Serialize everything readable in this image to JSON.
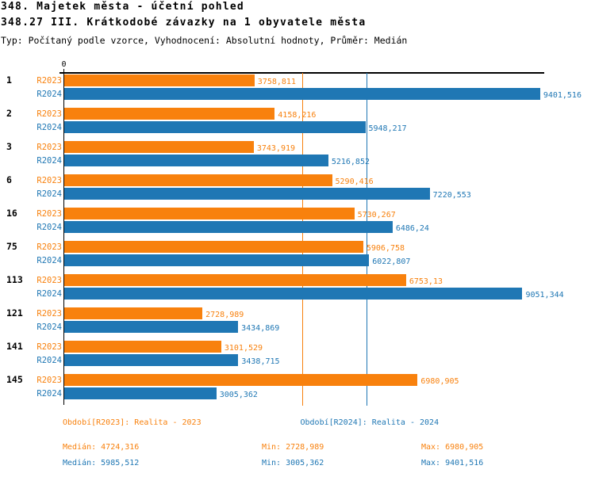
{
  "title": "348. Majetek města - účetní pohled",
  "subtitle": "348.27 III. Krátkodobé závazky na 1 obyvatele města",
  "meta": "Typ: Počítaný podle vzorce, Vyhodnocení: Absolutní hodnoty, Průměr: Medián",
  "colors": {
    "r2023": "#f8810d",
    "r2024": "#1f77b4",
    "axis": "#000000",
    "background": "#ffffff"
  },
  "chart_data": {
    "type": "bar",
    "orientation": "horizontal",
    "title": "348.27 III. Krátkodobé závazky na 1 obyvatele města",
    "categories": [
      "1",
      "2",
      "3",
      "6",
      "16",
      "75",
      "113",
      "121",
      "141",
      "145"
    ],
    "series": [
      {
        "name": "R2023",
        "color": "#f8810d",
        "values": [
          3758.811,
          4158.216,
          3743.919,
          5290.416,
          5730.267,
          5906.758,
          6753.13,
          2728.989,
          3101.529,
          6980.905
        ],
        "value_labels": [
          "3758,811",
          "4158,216",
          "3743,919",
          "5290,416",
          "5730,267",
          "5906,758",
          "6753,13",
          "2728,989",
          "3101,529",
          "6980,905"
        ],
        "median": 4724.316
      },
      {
        "name": "R2024",
        "color": "#1f77b4",
        "values": [
          9401.516,
          5948.217,
          5216.852,
          7220.553,
          6486.24,
          6022.807,
          9051.344,
          3434.869,
          3438.715,
          3005.362
        ],
        "value_labels": [
          "9401,516",
          "5948,217",
          "5216,852",
          "7220,553",
          "6486,24",
          "6022,807",
          "9051,344",
          "3434,869",
          "3438,715",
          "3005,362"
        ],
        "median": 5985.512
      }
    ],
    "xlim": [
      0,
      9480
    ],
    "x_tick_label": "0",
    "grid": "median-lines-only",
    "legend_position": "bottom"
  },
  "legend": {
    "r2023": "Období[R2023]: Realita - 2023",
    "r2024": "Období[R2024]: Realita - 2024"
  },
  "stats": {
    "r2023": {
      "median": "Medián: 4724,316",
      "min": "Min: 2728,989",
      "max": "Max: 6980,905"
    },
    "r2024": {
      "median": "Medián: 5985,512",
      "min": "Min: 3005,362",
      "max": "Max: 9401,516"
    }
  }
}
